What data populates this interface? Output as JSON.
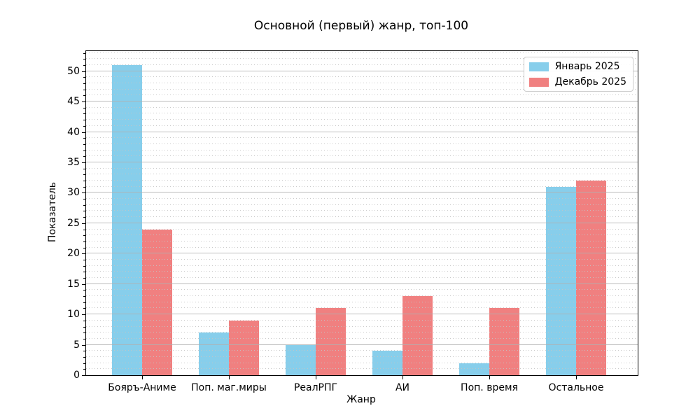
{
  "chart_data": {
    "type": "bar",
    "title": "Основной (первый) жанр, топ-100",
    "xlabel": "Жанр",
    "ylabel": "Показатель",
    "categories": [
      "Бояръ-Аниме",
      "Поп. маг.миры",
      "РеалРПГ",
      "АИ",
      "Поп. время",
      "Остальное"
    ],
    "series": [
      {
        "name": "Январь 2025",
        "color": "#87CEEB",
        "values": [
          51,
          7,
          5,
          4,
          2,
          31
        ]
      },
      {
        "name": "Декабрь 2025",
        "color": "#F08080",
        "values": [
          24,
          9,
          11,
          13,
          11,
          32
        ]
      }
    ],
    "ylim": [
      0,
      53.3
    ],
    "yticks": [
      0,
      5,
      10,
      15,
      20,
      25,
      30,
      35,
      40,
      45,
      50
    ],
    "ytick_labels": [
      "0",
      "5",
      "10",
      "15",
      "20",
      "25",
      "30",
      "35",
      "40",
      "45",
      "50"
    ],
    "grid": {
      "orientation": "horizontal",
      "major_step": 5,
      "minor_step": 1,
      "major_style": "solid",
      "minor_style": "dotted",
      "grid_on_top_of_bars": true
    },
    "legend": {
      "position": "upper right",
      "entries": [
        "Январь 2025",
        "Декабрь 2025"
      ]
    },
    "colors": {
      "january": "#87CEEB",
      "december": "#F08080",
      "grid_major": "#b0b0b0",
      "grid_minor": "#c4c4c4",
      "spine": "#000000"
    }
  }
}
